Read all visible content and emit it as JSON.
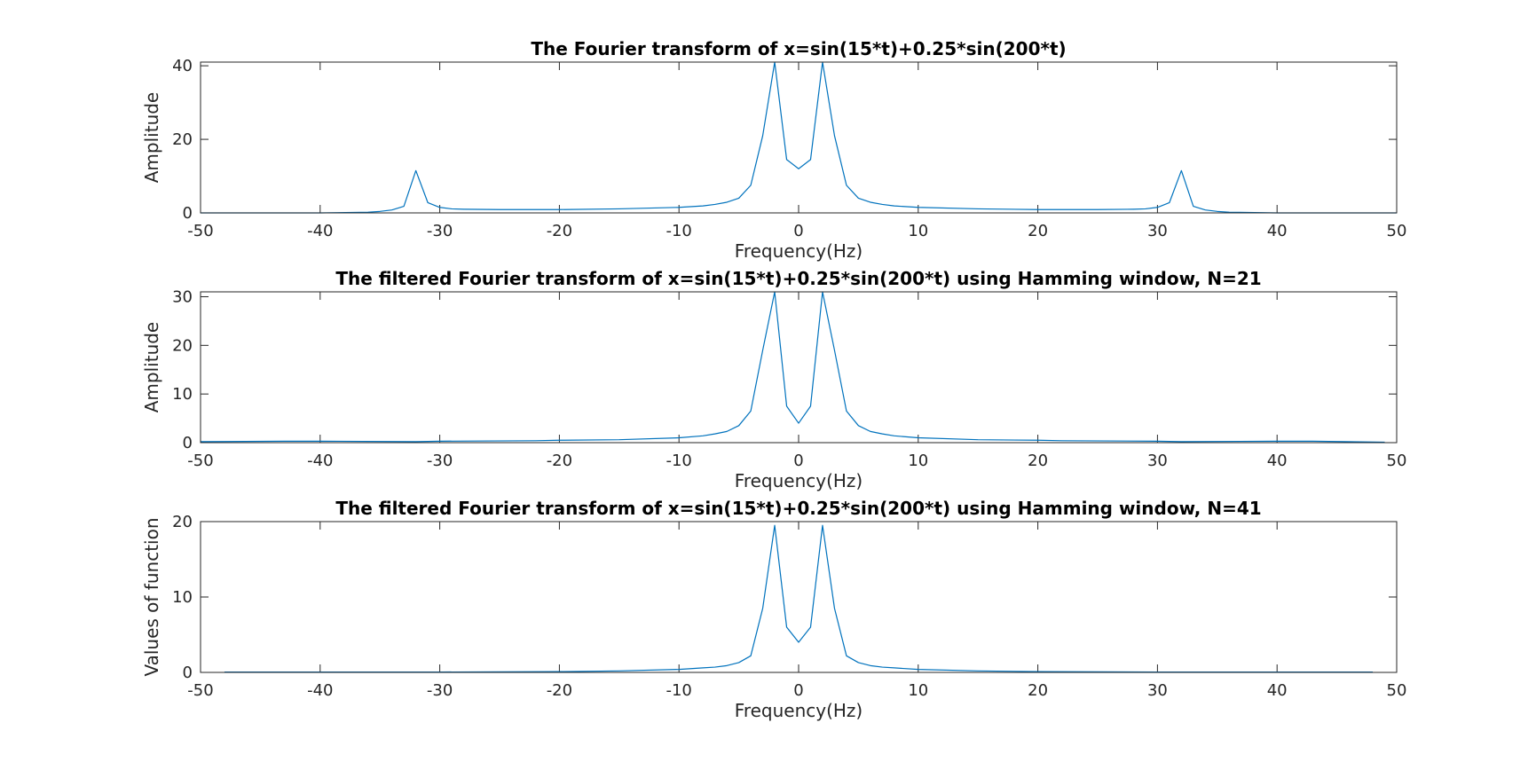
{
  "chart_data": [
    {
      "type": "line",
      "title": "The Fourier transform of x=sin(15*t)+0.25*sin(200*t)",
      "xlabel": "Frequency(Hz)",
      "ylabel": "Amplitude",
      "xlim": [
        -50,
        50
      ],
      "ylim": [
        0,
        41
      ],
      "xticks": [
        -50,
        -40,
        -30,
        -20,
        -10,
        0,
        10,
        20,
        30,
        40,
        50
      ],
      "yticks": [
        0,
        20,
        40
      ],
      "grid": false,
      "color": "#0072BD",
      "series": [
        {
          "x": [
            -50,
            -40,
            -36,
            -35,
            -34,
            -33,
            -32,
            -31,
            -30,
            -29,
            -28,
            -25,
            -20,
            -15,
            -10,
            -8,
            -7,
            -6,
            -5,
            -4,
            -3,
            -2,
            -1,
            0,
            1,
            2,
            3,
            4,
            5,
            6,
            7,
            8,
            10,
            15,
            20,
            25,
            28,
            29,
            30,
            31,
            32,
            33,
            34,
            35,
            36,
            40,
            50
          ],
          "y": [
            0,
            0,
            0.2,
            0.4,
            0.8,
            1.8,
            11.5,
            2.8,
            1.5,
            1.1,
            1.0,
            0.9,
            0.9,
            1.1,
            1.5,
            1.9,
            2.3,
            2.9,
            4.0,
            7.5,
            21,
            41,
            14.5,
            12,
            14.5,
            41,
            21,
            7.5,
            4.0,
            2.9,
            2.3,
            1.9,
            1.5,
            1.1,
            0.9,
            0.9,
            1.0,
            1.1,
            1.5,
            2.8,
            11.5,
            1.8,
            0.8,
            0.4,
            0.2,
            0,
            0
          ]
        }
      ]
    },
    {
      "type": "line",
      "title": "The filtered Fourier transform of x=sin(15*t)+0.25*sin(200*t) using Hamming window, N=21",
      "xlabel": "Frequency(Hz)",
      "ylabel": "Amplitude",
      "xlim": [
        -50,
        50
      ],
      "ylim": [
        0,
        31
      ],
      "xticks": [
        -50,
        -40,
        -30,
        -20,
        -10,
        0,
        10,
        20,
        30,
        40,
        50
      ],
      "yticks": [
        0,
        10,
        20,
        30
      ],
      "grid": false,
      "color": "#0072BD",
      "series": [
        {
          "x": [
            -50,
            -43,
            -40,
            -32,
            -30,
            -22,
            -20,
            -15,
            -10,
            -8,
            -7,
            -6,
            -5,
            -4,
            -3,
            -2,
            -1,
            0,
            1,
            2,
            3,
            4,
            5,
            6,
            7,
            8,
            10,
            15,
            20,
            22,
            30,
            32,
            40,
            43,
            49
          ],
          "y": [
            0.2,
            0.3,
            0.3,
            0.2,
            0.3,
            0.4,
            0.5,
            0.6,
            1.0,
            1.4,
            1.8,
            2.3,
            3.5,
            6.5,
            19,
            31,
            7.5,
            4,
            7.5,
            31,
            19,
            6.5,
            3.5,
            2.3,
            1.8,
            1.4,
            1.0,
            0.6,
            0.5,
            0.4,
            0.3,
            0.2,
            0.3,
            0.3,
            0.1
          ]
        }
      ]
    },
    {
      "type": "line",
      "title": "The filtered Fourier transform of x=sin(15*t)+0.25*sin(200*t) using Hamming window, N=41",
      "xlabel": "Frequency(Hz)",
      "ylabel": "Values of function",
      "xlim": [
        -50,
        50
      ],
      "ylim": [
        0,
        20
      ],
      "xticks": [
        -50,
        -40,
        -30,
        -20,
        -10,
        0,
        10,
        20,
        30,
        40,
        50
      ],
      "yticks": [
        0,
        10,
        20
      ],
      "grid": false,
      "color": "#0072BD",
      "series": [
        {
          "x": [
            -48,
            -40,
            -30,
            -20,
            -15,
            -10,
            -8,
            -7,
            -6,
            -5,
            -4,
            -3,
            -2,
            -1,
            0,
            1,
            2,
            3,
            4,
            5,
            6,
            7,
            8,
            10,
            15,
            20,
            30,
            40,
            48
          ],
          "y": [
            0.05,
            0.05,
            0.05,
            0.1,
            0.2,
            0.4,
            0.6,
            0.7,
            0.9,
            1.3,
            2.2,
            8.5,
            19.5,
            6,
            4,
            6,
            19.5,
            8.5,
            2.2,
            1.3,
            0.9,
            0.7,
            0.6,
            0.4,
            0.2,
            0.1,
            0.05,
            0.05,
            0.05
          ]
        }
      ]
    }
  ]
}
